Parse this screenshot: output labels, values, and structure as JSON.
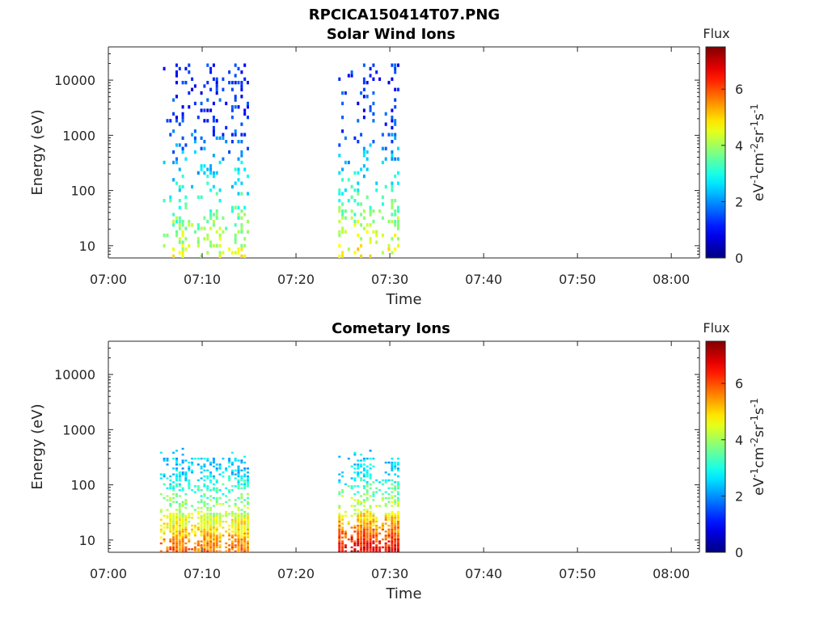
{
  "figure_title": "RPCICA150414T07.PNG",
  "colors": {
    "solar_wind_low": "#1d4fe0",
    "mid": "#40e0b0",
    "high": "#ffd000",
    "peak": "#e01800"
  },
  "chart_data": [
    {
      "type": "heatmap",
      "title": "Solar Wind Ions",
      "xlabel": "Time",
      "ylabel": "Energy (eV)",
      "yscale": "log",
      "ylim": [
        6,
        40000
      ],
      "xlim": [
        "07:00",
        "08:03"
      ],
      "x_ticks": [
        "07:00",
        "07:10",
        "07:20",
        "07:30",
        "07:40",
        "07:50",
        "08:00"
      ],
      "y_ticks": [
        "10",
        "100",
        "1000",
        "10000"
      ],
      "colorbar": {
        "label": "Flux",
        "units": "eV-1cm-2sr-1s-1",
        "range": [
          0,
          7.5
        ],
        "ticks": [
          "0",
          "2",
          "4",
          "6"
        ]
      },
      "series": [
        {
          "time_range": [
            "07:05.5",
            "07:15"
          ],
          "energy_range_eV": [
            6,
            20000
          ],
          "flux_low_energy_max": 4.5,
          "flux_high_energy": 1.2
        },
        {
          "time_range": [
            "07:24.5",
            "07:31"
          ],
          "energy_range_eV": [
            6,
            20000
          ],
          "flux_low_energy_max": 4.8,
          "flux_high_energy": 1.2
        }
      ]
    },
    {
      "type": "heatmap",
      "title": "Cometary Ions",
      "xlabel": "Time",
      "ylabel": "Energy (eV)",
      "yscale": "log",
      "ylim": [
        6,
        40000
      ],
      "xlim": [
        "07:00",
        "08:03"
      ],
      "x_ticks": [
        "07:00",
        "07:10",
        "07:20",
        "07:30",
        "07:40",
        "07:50",
        "08:00"
      ],
      "y_ticks": [
        "10",
        "100",
        "1000",
        "10000"
      ],
      "colorbar": {
        "label": "Flux",
        "units": "eV-1cm-2sr-1s-1",
        "range": [
          0,
          7.5
        ],
        "ticks": [
          "0",
          "2",
          "4",
          "6"
        ]
      },
      "series": [
        {
          "time_range": [
            "07:05.5",
            "07:15"
          ],
          "energy_range_eV": [
            6,
            600
          ],
          "flux_low_energy_max": 5.8,
          "flux_high_energy": 2.5
        },
        {
          "time_range": [
            "07:24.5",
            "07:31"
          ],
          "energy_range_eV": [
            6,
            600
          ],
          "flux_low_energy_max": 6.8,
          "flux_high_energy": 2.5
        }
      ]
    }
  ]
}
